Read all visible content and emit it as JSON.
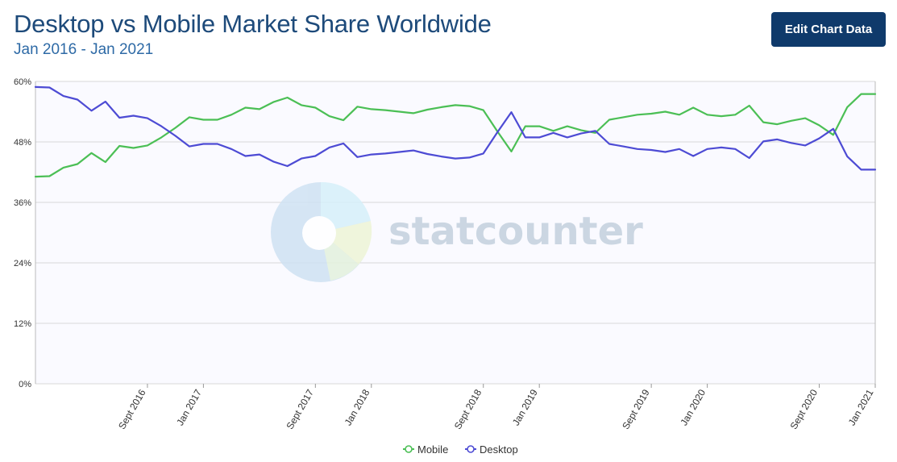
{
  "header": {
    "title": "Desktop vs Mobile Market Share Worldwide",
    "subtitle": "Jan 2016 - Jan 2021",
    "edit_button_label": "Edit Chart Data"
  },
  "watermark": {
    "text": "statcounter"
  },
  "colors": {
    "mobile": "#4bbf55",
    "desktop": "#4d4bd4",
    "plot_background": "#fafaff",
    "grid": "#d8d8d8",
    "button": "#0f3a6b"
  },
  "chart_data": {
    "type": "line",
    "x_start": "Jan 2016",
    "x_end": "Jan 2021",
    "x_step": "1 month",
    "x_tick_labels": [
      {
        "label": "Sept 2016",
        "month_index": 8
      },
      {
        "label": "Jan 2017",
        "month_index": 12
      },
      {
        "label": "Sept 2017",
        "month_index": 20
      },
      {
        "label": "Jan 2018",
        "month_index": 24
      },
      {
        "label": "Sept 2018",
        "month_index": 32
      },
      {
        "label": "Jan 2019",
        "month_index": 36
      },
      {
        "label": "Sept 2019",
        "month_index": 44
      },
      {
        "label": "Jan 2020",
        "month_index": 48
      },
      {
        "label": "Sept 2020",
        "month_index": 56
      },
      {
        "label": "Jan 2021",
        "month_index": 60
      }
    ],
    "y_ticks": [
      "0%",
      "12%",
      "24%",
      "36%",
      "48%",
      "60%"
    ],
    "ylim": [
      0,
      60
    ],
    "grid": true,
    "legend_position": "bottom-center",
    "series": [
      {
        "name": "Mobile",
        "values": [
          41.1,
          41.2,
          42.9,
          43.6,
          45.8,
          44.0,
          47.2,
          46.8,
          47.3,
          48.9,
          50.8,
          52.9,
          52.4,
          52.4,
          53.4,
          54.8,
          54.5,
          55.9,
          56.8,
          55.3,
          54.8,
          53.1,
          52.3,
          55.0,
          54.5,
          54.3,
          54.0,
          53.7,
          54.4,
          54.9,
          55.3,
          55.1,
          54.3,
          50.1,
          46.1,
          51.1,
          51.1,
          50.2,
          51.1,
          50.3,
          49.8,
          52.4,
          52.9,
          53.4,
          53.6,
          54.0,
          53.4,
          54.8,
          53.4,
          53.1,
          53.4,
          55.2,
          51.9,
          51.5,
          52.2,
          52.7,
          51.3,
          49.4,
          54.9,
          57.5,
          57.5
        ]
      },
      {
        "name": "Desktop",
        "values": [
          58.9,
          58.8,
          57.1,
          56.4,
          54.2,
          56.0,
          52.8,
          53.2,
          52.7,
          51.1,
          49.2,
          47.1,
          47.6,
          47.6,
          46.6,
          45.2,
          45.5,
          44.1,
          43.2,
          44.7,
          45.2,
          46.9,
          47.7,
          45.0,
          45.5,
          45.7,
          46.0,
          46.3,
          45.6,
          45.1,
          44.7,
          44.9,
          45.7,
          49.9,
          53.9,
          48.9,
          48.9,
          49.8,
          48.9,
          49.7,
          50.2,
          47.6,
          47.1,
          46.6,
          46.4,
          46.0,
          46.6,
          45.2,
          46.6,
          46.9,
          46.6,
          44.8,
          48.1,
          48.5,
          47.8,
          47.3,
          48.7,
          50.6,
          45.1,
          42.5,
          42.5
        ]
      }
    ]
  }
}
